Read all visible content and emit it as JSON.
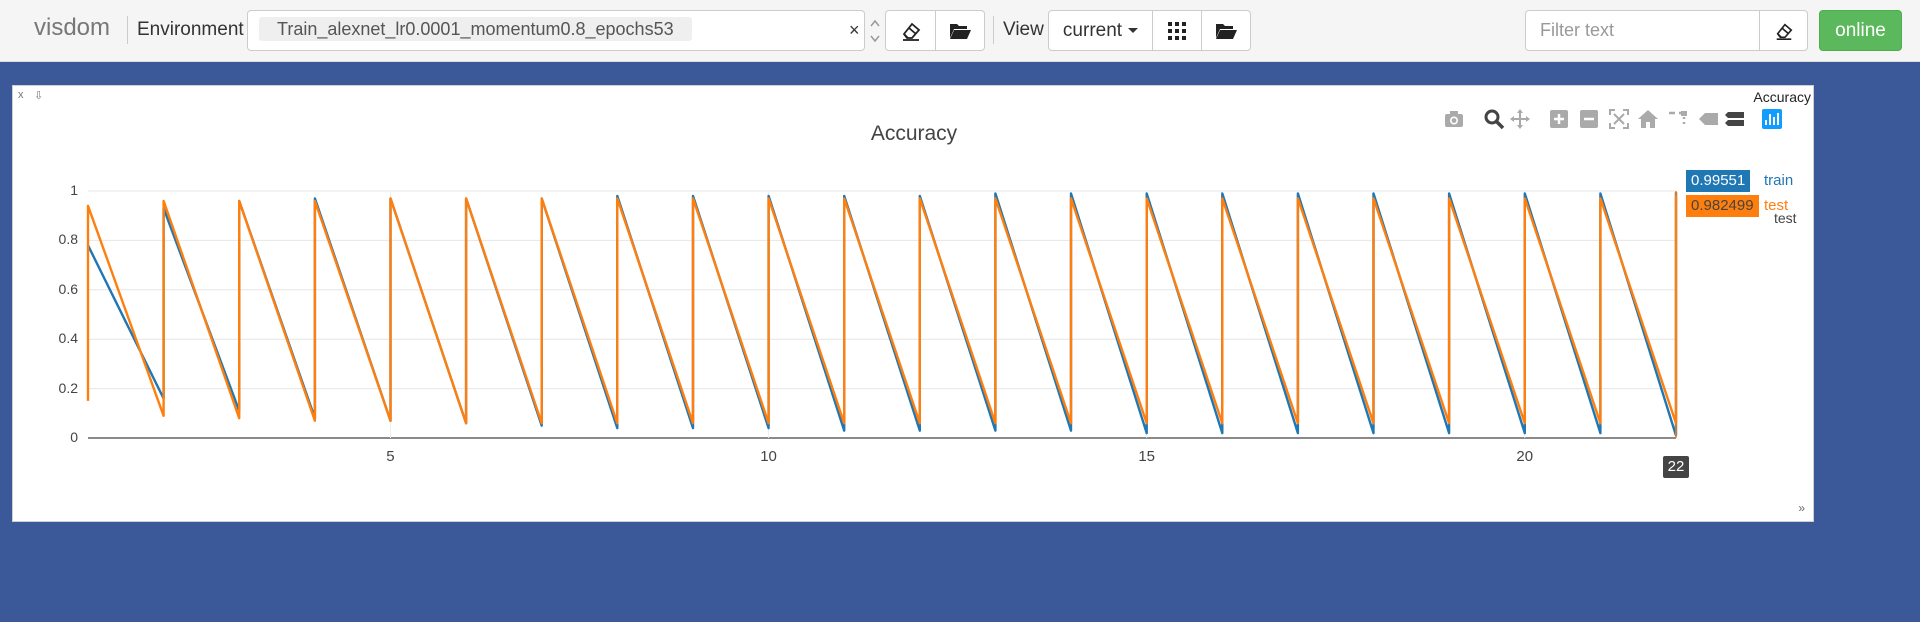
{
  "navbar": {
    "brand": "visdom",
    "environment_label": "Environment",
    "environment_value": "Train_alexnet_lr0.0001_momentum0.8_epochs53",
    "clear_symbol": "×",
    "view_label": "View",
    "view_value": "current",
    "filter_placeholder": "Filter text",
    "online_label": "online"
  },
  "pane": {
    "title": "Accuracy",
    "close_symbol": "x",
    "pin_symbol": "⇩",
    "footer_symbol": "»"
  },
  "modebar_icons": [
    "camera-icon",
    "zoom-icon",
    "pan-icon",
    "zoom-in-icon",
    "zoom-out-icon",
    "autoscale-icon",
    "reset-axes-icon",
    "spike-lines-icon",
    "hover-closest-icon",
    "hover-compare-icon",
    "plotly-logo-icon"
  ],
  "colors": {
    "background": "#3b5998",
    "train": "#1f77b4",
    "test": "#ff7f0e",
    "online": "#5cb85c"
  },
  "chart_data": {
    "type": "line",
    "title": "Accuracy",
    "xlim": [
      1,
      22
    ],
    "ylim": [
      0,
      1
    ],
    "x_ticks": [
      5,
      10,
      15,
      20
    ],
    "y_ticks": [
      0,
      0.2,
      0.4,
      0.6,
      0.8,
      1
    ],
    "series": [
      {
        "name": "train",
        "points": [
          [
            1,
            0.78
          ],
          [
            2,
            0.16
          ],
          [
            2,
            0.93
          ],
          [
            3,
            0.11
          ],
          [
            3,
            0.96
          ],
          [
            4,
            0.08
          ],
          [
            4,
            0.97
          ],
          [
            5,
            0.07
          ],
          [
            5,
            0.97
          ],
          [
            6,
            0.06
          ],
          [
            6,
            0.97
          ],
          [
            7,
            0.05
          ],
          [
            7,
            0.97
          ],
          [
            8,
            0.04
          ],
          [
            8,
            0.98
          ],
          [
            9,
            0.04
          ],
          [
            9,
            0.98
          ],
          [
            10,
            0.04
          ],
          [
            10,
            0.98
          ],
          [
            11,
            0.03
          ],
          [
            11,
            0.98
          ],
          [
            12,
            0.03
          ],
          [
            12,
            0.98
          ],
          [
            13,
            0.03
          ],
          [
            13,
            0.99
          ],
          [
            14,
            0.03
          ],
          [
            14,
            0.99
          ],
          [
            15,
            0.02
          ],
          [
            15,
            0.99
          ],
          [
            16,
            0.02
          ],
          [
            16,
            0.99
          ],
          [
            17,
            0.02
          ],
          [
            17,
            0.99
          ],
          [
            18,
            0.02
          ],
          [
            18,
            0.99
          ],
          [
            19,
            0.02
          ],
          [
            19,
            0.99
          ],
          [
            20,
            0.02
          ],
          [
            20,
            0.99
          ],
          [
            21,
            0.02
          ],
          [
            21,
            0.99
          ],
          [
            22,
            0.01
          ],
          [
            22,
            0.99551
          ]
        ]
      },
      {
        "name": "test",
        "points": [
          [
            1,
            0.15
          ],
          [
            1,
            0.94
          ],
          [
            2,
            0.09
          ],
          [
            2,
            0.96
          ],
          [
            3,
            0.08
          ],
          [
            3,
            0.96
          ],
          [
            4,
            0.07
          ],
          [
            4,
            0.96
          ],
          [
            5,
            0.07
          ],
          [
            5,
            0.97
          ],
          [
            6,
            0.06
          ],
          [
            6,
            0.97
          ],
          [
            7,
            0.06
          ],
          [
            7,
            0.97
          ],
          [
            8,
            0.06
          ],
          [
            8,
            0.97
          ],
          [
            9,
            0.06
          ],
          [
            9,
            0.97
          ],
          [
            10,
            0.06
          ],
          [
            10,
            0.97
          ],
          [
            11,
            0.06
          ],
          [
            11,
            0.97
          ],
          [
            12,
            0.06
          ],
          [
            12,
            0.97
          ],
          [
            13,
            0.06
          ],
          [
            13,
            0.97
          ],
          [
            14,
            0.06
          ],
          [
            14,
            0.97
          ],
          [
            15,
            0.06
          ],
          [
            15,
            0.97
          ],
          [
            16,
            0.06
          ],
          [
            16,
            0.97
          ],
          [
            17,
            0.06
          ],
          [
            17,
            0.97
          ],
          [
            18,
            0.06
          ],
          [
            18,
            0.97
          ],
          [
            19,
            0.06
          ],
          [
            19,
            0.97
          ],
          [
            20,
            0.06
          ],
          [
            20,
            0.97
          ],
          [
            21,
            0.06
          ],
          [
            21,
            0.97
          ],
          [
            22,
            0.06
          ],
          [
            22,
            0.982499
          ]
        ]
      }
    ],
    "hover": {
      "x_label": "22",
      "values": [
        {
          "series": "train",
          "value": "0.99551"
        },
        {
          "series": "test",
          "value": "0.982499"
        }
      ]
    },
    "legend": {
      "position": "top-right",
      "entries": [
        "train",
        "test"
      ]
    }
  }
}
